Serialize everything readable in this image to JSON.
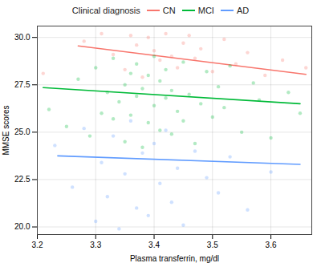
{
  "chart_data": {
    "type": "scatter",
    "legend_title": "Clinical diagnosis",
    "legend": "top",
    "x_label": "Plasma transferrin, mg/dl",
    "y_label": "MMSE scores",
    "xlim": [
      3.2,
      3.67
    ],
    "xticks": [
      3.2,
      3.3,
      3.4,
      3.5,
      3.6
    ],
    "ylim": [
      19.6,
      30.6
    ],
    "yticks": [
      {
        "value": 20,
        "label": "20.0"
      },
      22.5,
      {
        "value": 25,
        "label": "25.0"
      },
      27.5,
      {
        "value": 30,
        "label": "30.0"
      }
    ],
    "grid": true,
    "series": [
      {
        "name": "CN",
        "color": "#F8766D",
        "x": [
          3.21,
          3.28,
          3.31,
          3.33,
          3.35,
          3.36,
          3.37,
          3.38,
          3.39,
          3.4,
          3.41,
          3.42,
          3.43,
          3.44,
          3.45,
          3.46,
          3.47,
          3.48,
          3.5,
          3.52,
          3.54,
          3.56,
          3.59,
          3.62,
          3.66
        ],
        "values": [
          28.1,
          29.8,
          30.2,
          29.1,
          28.3,
          30.1,
          29.6,
          27.9,
          30.0,
          29.3,
          28.8,
          30.2,
          29.0,
          28.4,
          29.7,
          30.1,
          28.9,
          29.4,
          28.2,
          29.9,
          28.6,
          29.2,
          28.0,
          28.8,
          28.4
        ],
        "trend": {
          "x": [
            3.27,
            3.66
          ],
          "values": [
            29.55,
            28.05
          ]
        }
      },
      {
        "name": "MCI",
        "color": "#00BA38",
        "x": [
          3.22,
          3.25,
          3.27,
          3.29,
          3.3,
          3.31,
          3.32,
          3.33,
          3.33,
          3.34,
          3.35,
          3.35,
          3.36,
          3.36,
          3.37,
          3.37,
          3.38,
          3.38,
          3.39,
          3.39,
          3.4,
          3.4,
          3.41,
          3.41,
          3.42,
          3.42,
          3.43,
          3.43,
          3.44,
          3.45,
          3.45,
          3.46,
          3.47,
          3.48,
          3.49,
          3.5,
          3.51,
          3.52,
          3.53,
          3.55,
          3.57,
          3.58,
          3.6,
          3.63,
          3.65
        ],
        "values": [
          26.2,
          25.3,
          27.8,
          24.8,
          28.4,
          26.0,
          27.1,
          25.7,
          28.9,
          26.6,
          24.5,
          27.5,
          28.1,
          25.9,
          26.9,
          28.6,
          24.2,
          27.3,
          25.5,
          28.0,
          26.4,
          29.0,
          27.7,
          25.1,
          26.8,
          28.3,
          24.9,
          27.2,
          26.1,
          28.7,
          25.6,
          27.0,
          24.4,
          26.5,
          28.2,
          25.8,
          27.4,
          26.3,
          28.5,
          25.0,
          27.6,
          26.7,
          24.7,
          27.1,
          26.0
        ],
        "trend": {
          "x": [
            3.21,
            3.65
          ],
          "values": [
            27.35,
            26.5
          ]
        }
      },
      {
        "name": "AD",
        "color": "#619CFF",
        "x": [
          3.23,
          3.26,
          3.28,
          3.3,
          3.31,
          3.32,
          3.33,
          3.34,
          3.35,
          3.36,
          3.37,
          3.38,
          3.39,
          3.4,
          3.41,
          3.42,
          3.43,
          3.44,
          3.45,
          3.47,
          3.49,
          3.51,
          3.53,
          3.56,
          3.6
        ],
        "values": [
          24.3,
          22.1,
          25.2,
          20.3,
          23.4,
          21.6,
          24.8,
          19.9,
          22.8,
          25.6,
          21.0,
          23.9,
          20.6,
          24.4,
          22.3,
          25.1,
          21.3,
          23.1,
          20.1,
          24.0,
          22.6,
          21.8,
          23.7,
          20.9,
          22.9
        ],
        "trend": {
          "x": [
            3.235,
            3.65
          ],
          "values": [
            23.75,
            23.3
          ]
        }
      }
    ]
  }
}
